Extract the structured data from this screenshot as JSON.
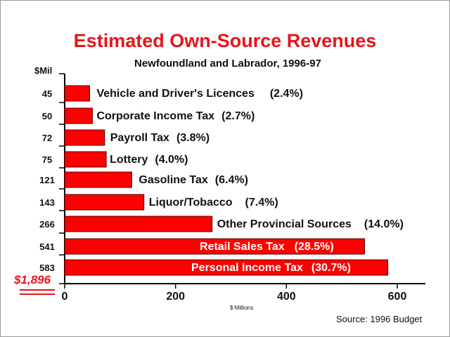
{
  "chart_data": {
    "type": "bar",
    "orientation": "horizontal",
    "title": "Estimated Own-Source Revenues",
    "subtitle": "Newfoundland and Labrador, 1996-97",
    "unit_label": "$Mil",
    "xlabel": "$ Millions",
    "source": "Source:  1996 Budget",
    "total": "$1,896",
    "xlim": [
      0,
      650
    ],
    "xticks": [
      0,
      200,
      400,
      600
    ],
    "xtick_labels": [
      "0",
      "200",
      "400",
      "600"
    ],
    "grid": false,
    "bar_color": "#ff0000",
    "categories": [
      {
        "value": 45,
        "value_label": "45",
        "name": "Vehicle and Driver's Licences",
        "pct": "(2.4%)"
      },
      {
        "value": 50,
        "value_label": "50",
        "name": "Corporate Income Tax",
        "pct": "(2.7%)"
      },
      {
        "value": 72,
        "value_label": "72",
        "name": "Payroll Tax",
        "pct": "(3.8%)"
      },
      {
        "value": 75,
        "value_label": "75",
        "name": "Lottery",
        "pct": "(4.0%)"
      },
      {
        "value": 121,
        "value_label": "121",
        "name": "Gasoline Tax",
        "pct": "(6.4%)"
      },
      {
        "value": 143,
        "value_label": "143",
        "name": "Liquor/Tobacco",
        "pct": "(7.4%)"
      },
      {
        "value": 266,
        "value_label": "266",
        "name": "Other Provincial Sources",
        "pct": "(14.0%)"
      },
      {
        "value": 541,
        "value_label": "541",
        "name": "Retail Sales Tax",
        "pct": "(28.5%)"
      },
      {
        "value": 583,
        "value_label": "583",
        "name": "Personal Income Tax",
        "pct": "(30.7%)"
      }
    ]
  }
}
